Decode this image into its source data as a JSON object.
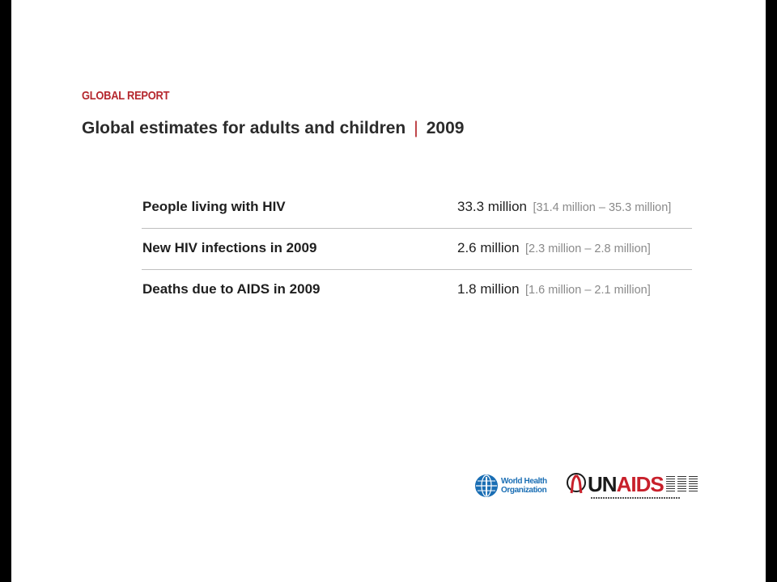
{
  "kicker": "GLOBAL REPORT",
  "title": {
    "main": "Global estimates for adults and children",
    "separator": "|",
    "year": "2009"
  },
  "rows": [
    {
      "label": "People living with HIV",
      "value": "33.3 million",
      "range": "[31.4 million – 35.3 million]"
    },
    {
      "label": "New HIV infections in 2009",
      "value": "2.6 million",
      "range": "[2.3 million – 2.8 million]"
    },
    {
      "label": "Deaths due to AIDS in 2009",
      "value": "1.8 million",
      "range": "[1.6 million – 2.1 million]"
    }
  ],
  "logos": {
    "who_line1": "World Health",
    "who_line2": "Organization",
    "unaids_un": "UN",
    "unaids_aids": "AIDS"
  },
  "colors": {
    "accent": "#b5282e",
    "who_blue": "#1a6eb4",
    "range_gray": "#8a8a8a"
  }
}
